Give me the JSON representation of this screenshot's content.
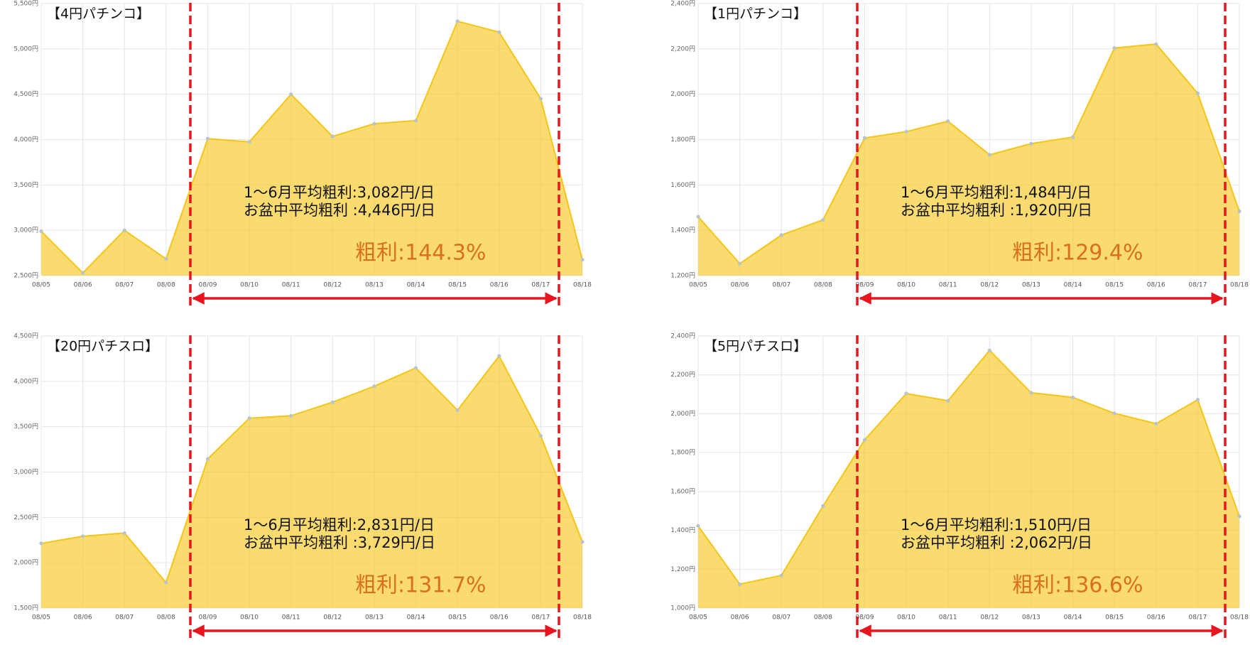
{
  "chart_data": [
    {
      "type": "area",
      "title": "【4円パチンコ】",
      "categories": [
        "08/05",
        "08/06",
        "08/07",
        "08/08",
        "08/09",
        "08/10",
        "08/11",
        "08/12",
        "08/13",
        "08/14",
        "08/15",
        "08/16",
        "08/17",
        "08/18"
      ],
      "values": [
        2990,
        2530,
        3000,
        2685,
        4010,
        3975,
        4500,
        4035,
        4175,
        4210,
        5305,
        5185,
        4450,
        2675
      ],
      "color": "#f5c518",
      "grid": true,
      "ylim": [
        2500,
        5500
      ],
      "yticks": [
        {
          "value": 2500,
          "label": "2,500円"
        },
        {
          "value": 3000,
          "label": "3,000円"
        },
        {
          "value": 3500,
          "label": "3,500円"
        },
        {
          "value": 4000,
          "label": "4,000円"
        },
        {
          "value": 4500,
          "label": "4,500円"
        },
        {
          "value": 5000,
          "label": "5,000円"
        },
        {
          "value": 5500,
          "label": "5,500円"
        }
      ],
      "annotations": [
        "1～6月平均粗利:3,082円/日",
        "お盆中平均粗利 :4,446円/日",
        "粗利:144.3%"
      ]
    },
    {
      "type": "area",
      "title": "【1円パチンコ】",
      "categories": [
        "08/05",
        "08/06",
        "08/07",
        "08/08",
        "08/09",
        "08/10",
        "08/11",
        "08/12",
        "08/13",
        "08/14",
        "08/15",
        "08/16",
        "08/17",
        "08/18"
      ],
      "values": [
        1460,
        1253,
        1379,
        1446,
        1807,
        1835,
        1881,
        1733,
        1782,
        1811,
        2204,
        2221,
        2004,
        1484
      ],
      "color": "#f5c518",
      "grid": true,
      "ylim": [
        1200,
        2400
      ],
      "yticks": [
        {
          "value": 1200,
          "label": "1,200円"
        },
        {
          "value": 1400,
          "label": "1,400円"
        },
        {
          "value": 1600,
          "label": "1,600円"
        },
        {
          "value": 1800,
          "label": "1,800円"
        },
        {
          "value": 2000,
          "label": "2,000円"
        },
        {
          "value": 2200,
          "label": "2,200円"
        },
        {
          "value": 2400,
          "label": "2,400円"
        }
      ],
      "annotations": [
        "1～6月平均粗利:1,484円/日",
        "お盆中平均粗利 :1,920円/日",
        "粗利:129.4%"
      ]
    },
    {
      "type": "area",
      "title": "【20円パチスロ】",
      "categories": [
        "08/05",
        "08/06",
        "08/07",
        "08/08",
        "08/09",
        "08/10",
        "08/11",
        "08/12",
        "08/13",
        "08/14",
        "08/15",
        "08/16",
        "08/17",
        "08/18"
      ],
      "values": [
        2213,
        2292,
        2327,
        1782,
        3145,
        3594,
        3620,
        3770,
        3946,
        4148,
        3682,
        4280,
        3400,
        2230
      ],
      "color": "#f5c518",
      "grid": true,
      "ylim": [
        1500,
        4500
      ],
      "yticks": [
        {
          "value": 1500,
          "label": "1,500円"
        },
        {
          "value": 2000,
          "label": "2,000円"
        },
        {
          "value": 2500,
          "label": "2,500円"
        },
        {
          "value": 3000,
          "label": "3,000円"
        },
        {
          "value": 3500,
          "label": "3,500円"
        },
        {
          "value": 4000,
          "label": "4,000円"
        },
        {
          "value": 4500,
          "label": "4,500円"
        }
      ],
      "annotations": [
        "1～6月平均粗利:2,831円/日",
        "お盆中平均粗利 :3,729円/日",
        "粗利:131.7%"
      ]
    },
    {
      "type": "area",
      "title": "【5円パチスロ】",
      "categories": [
        "08/05",
        "08/06",
        "08/07",
        "08/08",
        "08/09",
        "08/10",
        "08/11",
        "08/12",
        "08/13",
        "08/14",
        "08/15",
        "08/16",
        "08/17",
        "08/18"
      ],
      "values": [
        1423,
        1123,
        1168,
        1525,
        1866,
        2104,
        2067,
        2326,
        2108,
        2084,
        2002,
        1949,
        2072,
        1472
      ],
      "color": "#f5c518",
      "grid": true,
      "ylim": [
        1000,
        2400
      ],
      "yticks": [
        {
          "value": 1000,
          "label": "1,000円"
        },
        {
          "value": 1200,
          "label": "1,200円"
        },
        {
          "value": 1400,
          "label": "1,400円"
        },
        {
          "value": 1600,
          "label": "1,600円"
        },
        {
          "value": 1800,
          "label": "1,800円"
        },
        {
          "value": 2000,
          "label": "2,000円"
        },
        {
          "value": 2200,
          "label": "2,200円"
        },
        {
          "value": 2400,
          "label": "2,400円"
        }
      ],
      "annotations": [
        "1～6月平均粗利:1,510円/日",
        "お盆中平均粗利 :2,062円/日",
        "粗利:136.6%"
      ]
    }
  ]
}
